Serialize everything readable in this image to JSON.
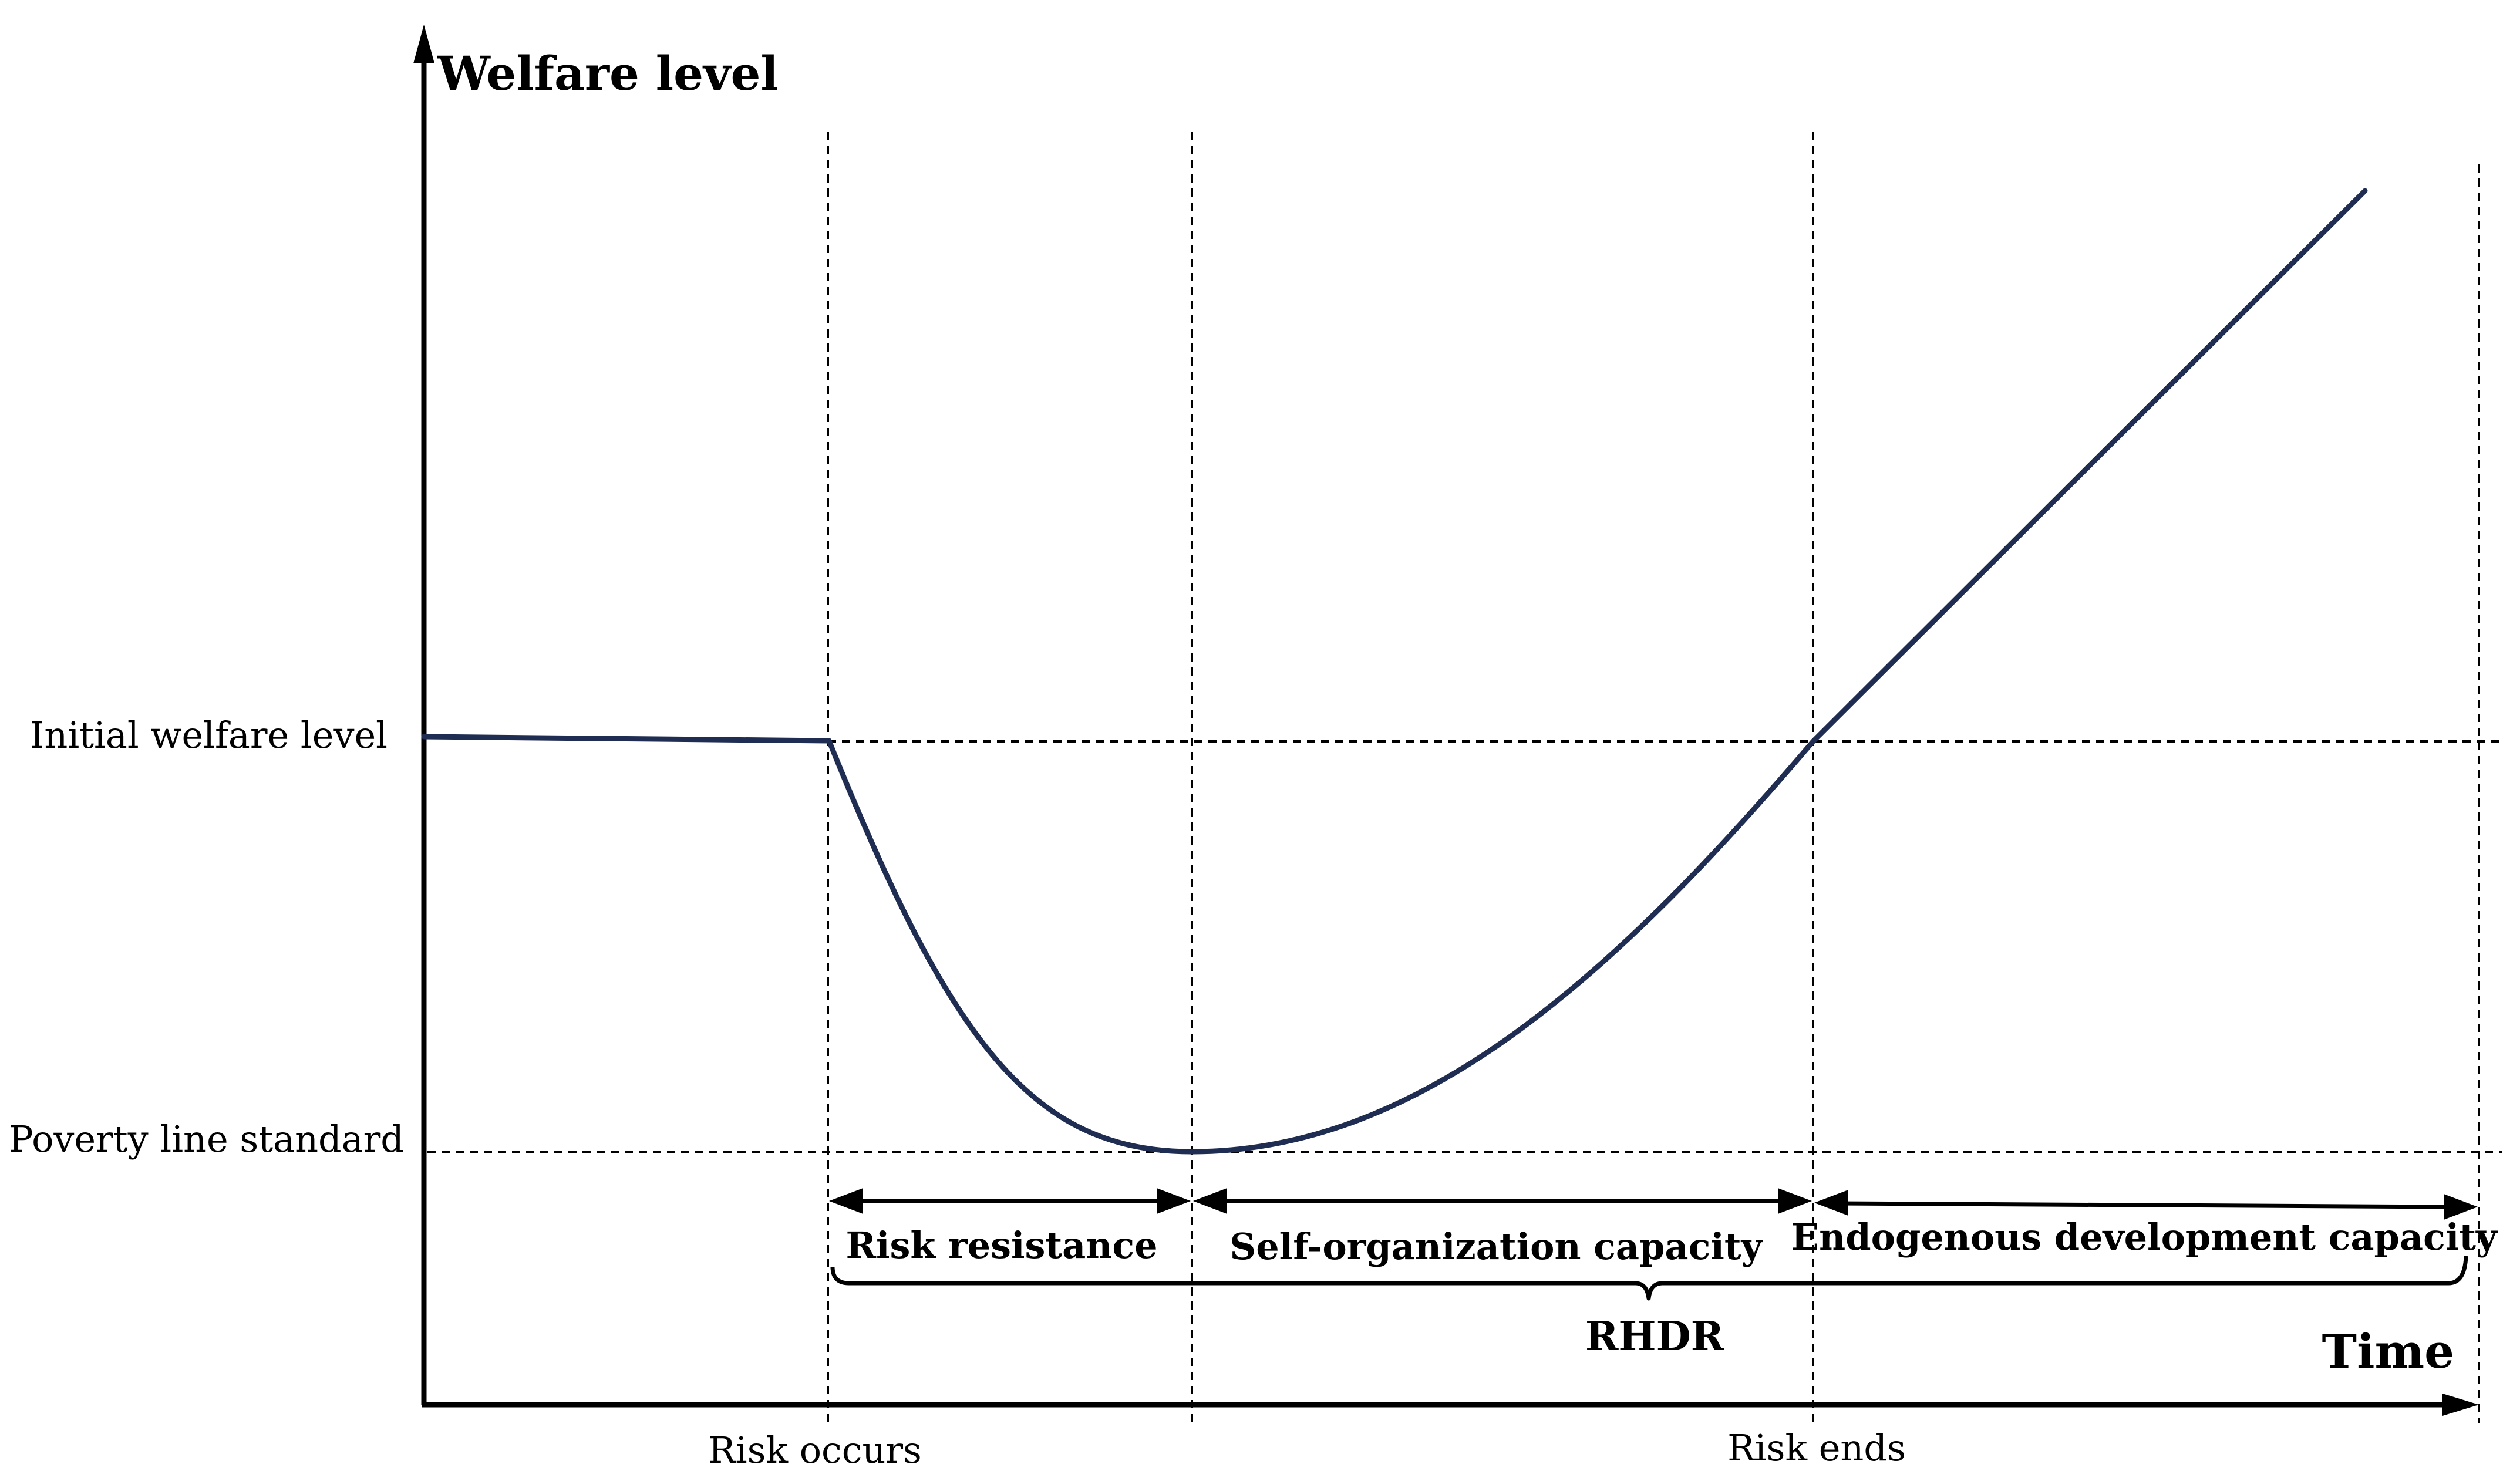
{
  "axes": {
    "y_label": "Welfare level",
    "x_label": "Time"
  },
  "levels": {
    "initial": "Initial welfare level",
    "poverty": "Poverty line standard"
  },
  "events": {
    "risk_occurs": "Risk occurs",
    "risk_ends": "Risk ends"
  },
  "phases": {
    "risk_resistance": "Risk resistance",
    "self_organization": "Self-organization capacity",
    "endogenous": "Endogenous development capacity"
  },
  "brace_label": "RHDR",
  "colors": {
    "curve": "#1f2d52",
    "axis": "#000000",
    "guide": "#000000"
  }
}
